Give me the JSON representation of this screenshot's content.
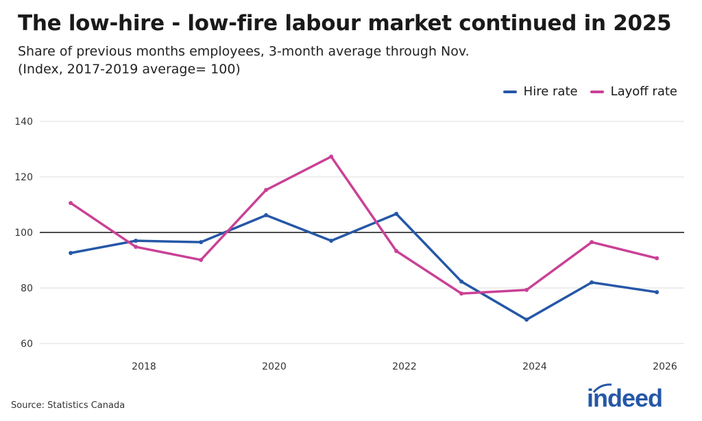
{
  "chart_data": {
    "type": "line",
    "title": "The low-hire - low-fire labour market continued in 2025",
    "subtitle": [
      "Share of previous months employees, 3-month average through Nov.",
      "(Index, 2017-2019 average= 100)"
    ],
    "xlabel": "",
    "ylabel": "",
    "x": [
      "2016-11",
      "2017-11",
      "2018-11",
      "2019-11",
      "2020-11",
      "2021-11",
      "2022-11",
      "2023-11",
      "2024-11",
      "2025-11"
    ],
    "series": [
      {
        "name": "Hire rate",
        "color": "#2557a7",
        "values": [
          92.6,
          97.0,
          96.5,
          106.2,
          97.0,
          106.7,
          82.3,
          68.6,
          82.0,
          78.5
        ]
      },
      {
        "name": "Layoff rate",
        "color": "#c94196",
        "values": [
          110.6,
          94.8,
          90.1,
          115.3,
          127.3,
          93.3,
          78.0,
          79.3,
          96.5,
          90.7
        ]
      }
    ],
    "xticks": [
      "2018",
      "2020",
      "2022",
      "2024",
      "2026"
    ],
    "yticks": [
      60,
      80,
      100,
      120,
      140
    ],
    "ylim": [
      57,
      142
    ],
    "reference_line": 100,
    "grid": true,
    "legend": "top-right"
  },
  "source": "Source: Statistics Canada",
  "logo": "indeed"
}
